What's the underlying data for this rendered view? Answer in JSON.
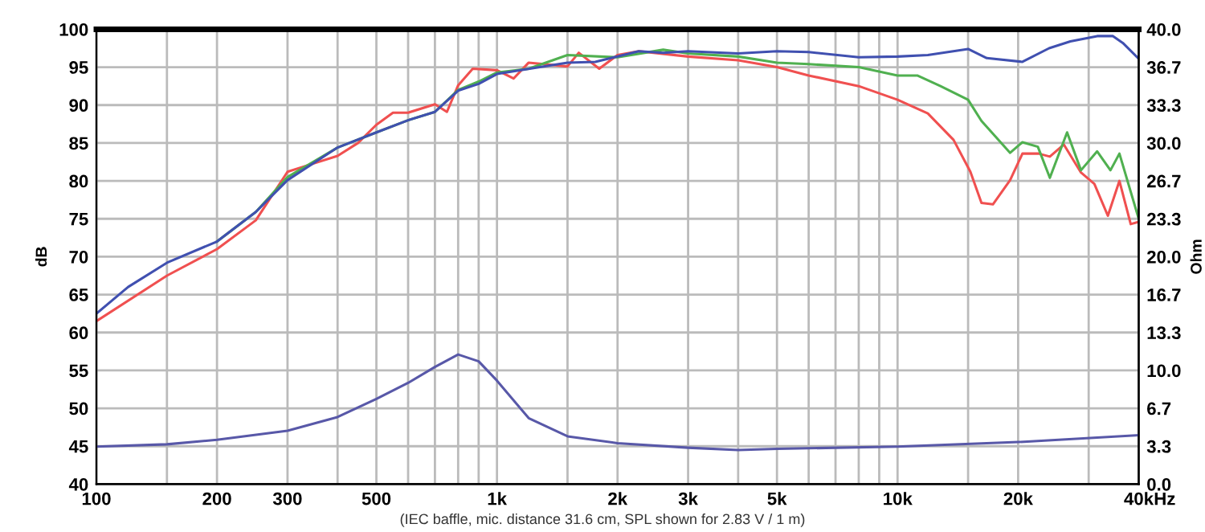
{
  "chart_data": {
    "type": "line",
    "ylabel": "dB",
    "y2label": "Ohm",
    "log": "x",
    "grid": true,
    "annotations": [
      "(IEC baffle, mic. distance 31.6 cm, SPL shown for 2.83 V / 1 m)"
    ],
    "xlim": [
      100,
      40000
    ],
    "ylim": [
      40,
      100
    ],
    "y2lim": [
      0,
      40
    ],
    "xticks": [
      100,
      {
        "value": 150,
        "label": null
      },
      200,
      300,
      {
        "value": 400,
        "label": null
      },
      500,
      {
        "value": 600,
        "label": null
      },
      {
        "value": 700,
        "label": null
      },
      {
        "value": 800,
        "label": null
      },
      {
        "value": 900,
        "label": null
      },
      {
        "value": 1000,
        "label": "1k"
      },
      {
        "value": 1500,
        "label": null
      },
      {
        "value": 2000,
        "label": "2k"
      },
      {
        "value": 3000,
        "label": "3k"
      },
      {
        "value": 4000,
        "label": null
      },
      {
        "value": 5000,
        "label": "5k"
      },
      {
        "value": 6000,
        "label": null
      },
      {
        "value": 7000,
        "label": null
      },
      {
        "value": 8000,
        "label": null
      },
      {
        "value": 9000,
        "label": null
      },
      {
        "value": 10000,
        "label": "10k"
      },
      {
        "value": 15000,
        "label": null
      },
      {
        "value": 20000,
        "label": "20k"
      },
      {
        "value": 30000,
        "label": null
      },
      {
        "value": 40000,
        "label": "40k"
      }
    ],
    "xlabel": "Hz",
    "yticks": [
      40,
      45,
      50,
      55,
      60,
      65,
      70,
      75,
      80,
      85,
      90,
      95,
      100
    ],
    "y2ticks": [
      {
        "value": 0,
        "label": "0.0"
      },
      {
        "value": 3.333,
        "label": "3.3"
      },
      {
        "value": 6.667,
        "label": "6.7"
      },
      {
        "value": 10,
        "label": "10.0"
      },
      {
        "value": 13.333,
        "label": "13.3"
      },
      {
        "value": 16.667,
        "label": "16.7"
      },
      {
        "value": 20,
        "label": "20.0"
      },
      {
        "value": 23.333,
        "label": "23.3"
      },
      {
        "value": 26.667,
        "label": "26.7"
      },
      {
        "value": 30,
        "label": "30.0"
      },
      {
        "value": 33.333,
        "label": "33.3"
      },
      {
        "value": 36.667,
        "label": "36.7"
      },
      {
        "value": 40,
        "label": "40.0"
      }
    ],
    "series": [
      {
        "color": "#f05050",
        "x": [
          100,
          150,
          200,
          250,
          300,
          330,
          400,
          450,
          500,
          550,
          600,
          700,
          750,
          800,
          870,
          1000,
          1100,
          1200,
          1500,
          1600,
          1800,
          2000,
          2260,
          3000,
          4000,
          5000,
          6000,
          8000,
          10000,
          11900,
          13800,
          15200,
          16200,
          17300,
          19100,
          20500,
          22500,
          24000,
          26000,
          28700,
          31000,
          33500,
          35800,
          38200,
          40000
        ],
        "values": [
          61.5,
          67.5,
          71,
          74.8,
          81.2,
          81.9,
          83.3,
          85,
          87.4,
          89,
          89,
          90.1,
          89.1,
          92.6,
          94.8,
          94.6,
          93.5,
          95.6,
          95.1,
          96.9,
          94.8,
          96.6,
          97.1,
          96.4,
          95.9,
          95,
          93.9,
          92.5,
          90.7,
          88.9,
          85.4,
          81.2,
          77.1,
          76.9,
          80.1,
          83.6,
          83.6,
          83.2,
          84.8,
          81.1,
          79.6,
          75.4,
          80,
          74.3,
          74.6
        ]
      },
      {
        "color": "#50b050",
        "x": [
          200,
          250,
          300,
          400,
          500,
          600,
          700,
          800,
          900,
          1000,
          1200,
          1500,
          2000,
          2600,
          3000,
          4000,
          5000,
          6000,
          8000,
          10000,
          11200,
          12800,
          15000,
          16200,
          19100,
          20500,
          22400,
          24000,
          26500,
          28700,
          31500,
          34000,
          35800,
          40000
        ],
        "values": [
          72,
          75.9,
          80.5,
          84.4,
          86.4,
          88,
          89.1,
          92,
          93.1,
          94.3,
          94.8,
          96.6,
          96.3,
          97.3,
          96.8,
          96.4,
          95.6,
          95.4,
          95,
          93.9,
          93.9,
          92.5,
          90.7,
          87.9,
          83.7,
          85.1,
          84.5,
          80.4,
          86.4,
          81.4,
          83.9,
          81.4,
          83.6,
          75
        ]
      },
      {
        "color": "#4050b0",
        "x": [
          100,
          120,
          150,
          200,
          250,
          300,
          400,
          500,
          600,
          700,
          800,
          900,
          1000,
          1500,
          1760,
          2260,
          2600,
          3000,
          4000,
          5000,
          6000,
          8000,
          10000,
          11900,
          15000,
          16700,
          20500,
          23900,
          27000,
          31500,
          34500,
          36500,
          40000
        ],
        "values": [
          62.5,
          66,
          69.2,
          72,
          75.9,
          80.1,
          84.4,
          86.4,
          88,
          89.1,
          91.9,
          92.8,
          94.1,
          95.6,
          95.7,
          97.1,
          96.9,
          97.1,
          96.8,
          97.1,
          97,
          96.3,
          96.4,
          96.6,
          97.4,
          96.2,
          95.7,
          97.5,
          98.4,
          99.1,
          99.1,
          98.2,
          96.1
        ]
      },
      {
        "color": "#5858a8",
        "axis": "y2",
        "x": [
          100,
          150,
          200,
          300,
          400,
          500,
          600,
          700,
          800,
          900,
          1000,
          1200,
          1500,
          2000,
          3000,
          4000,
          5000,
          10000,
          20000,
          40000
        ],
        "values": [
          3.3,
          3.5,
          3.9,
          4.7,
          5.9,
          7.5,
          8.9,
          10.3,
          11.4,
          10.8,
          9.1,
          5.8,
          4.2,
          3.6,
          3.2,
          3.0,
          3.1,
          3.3,
          3.7,
          4.3
        ]
      }
    ]
  }
}
